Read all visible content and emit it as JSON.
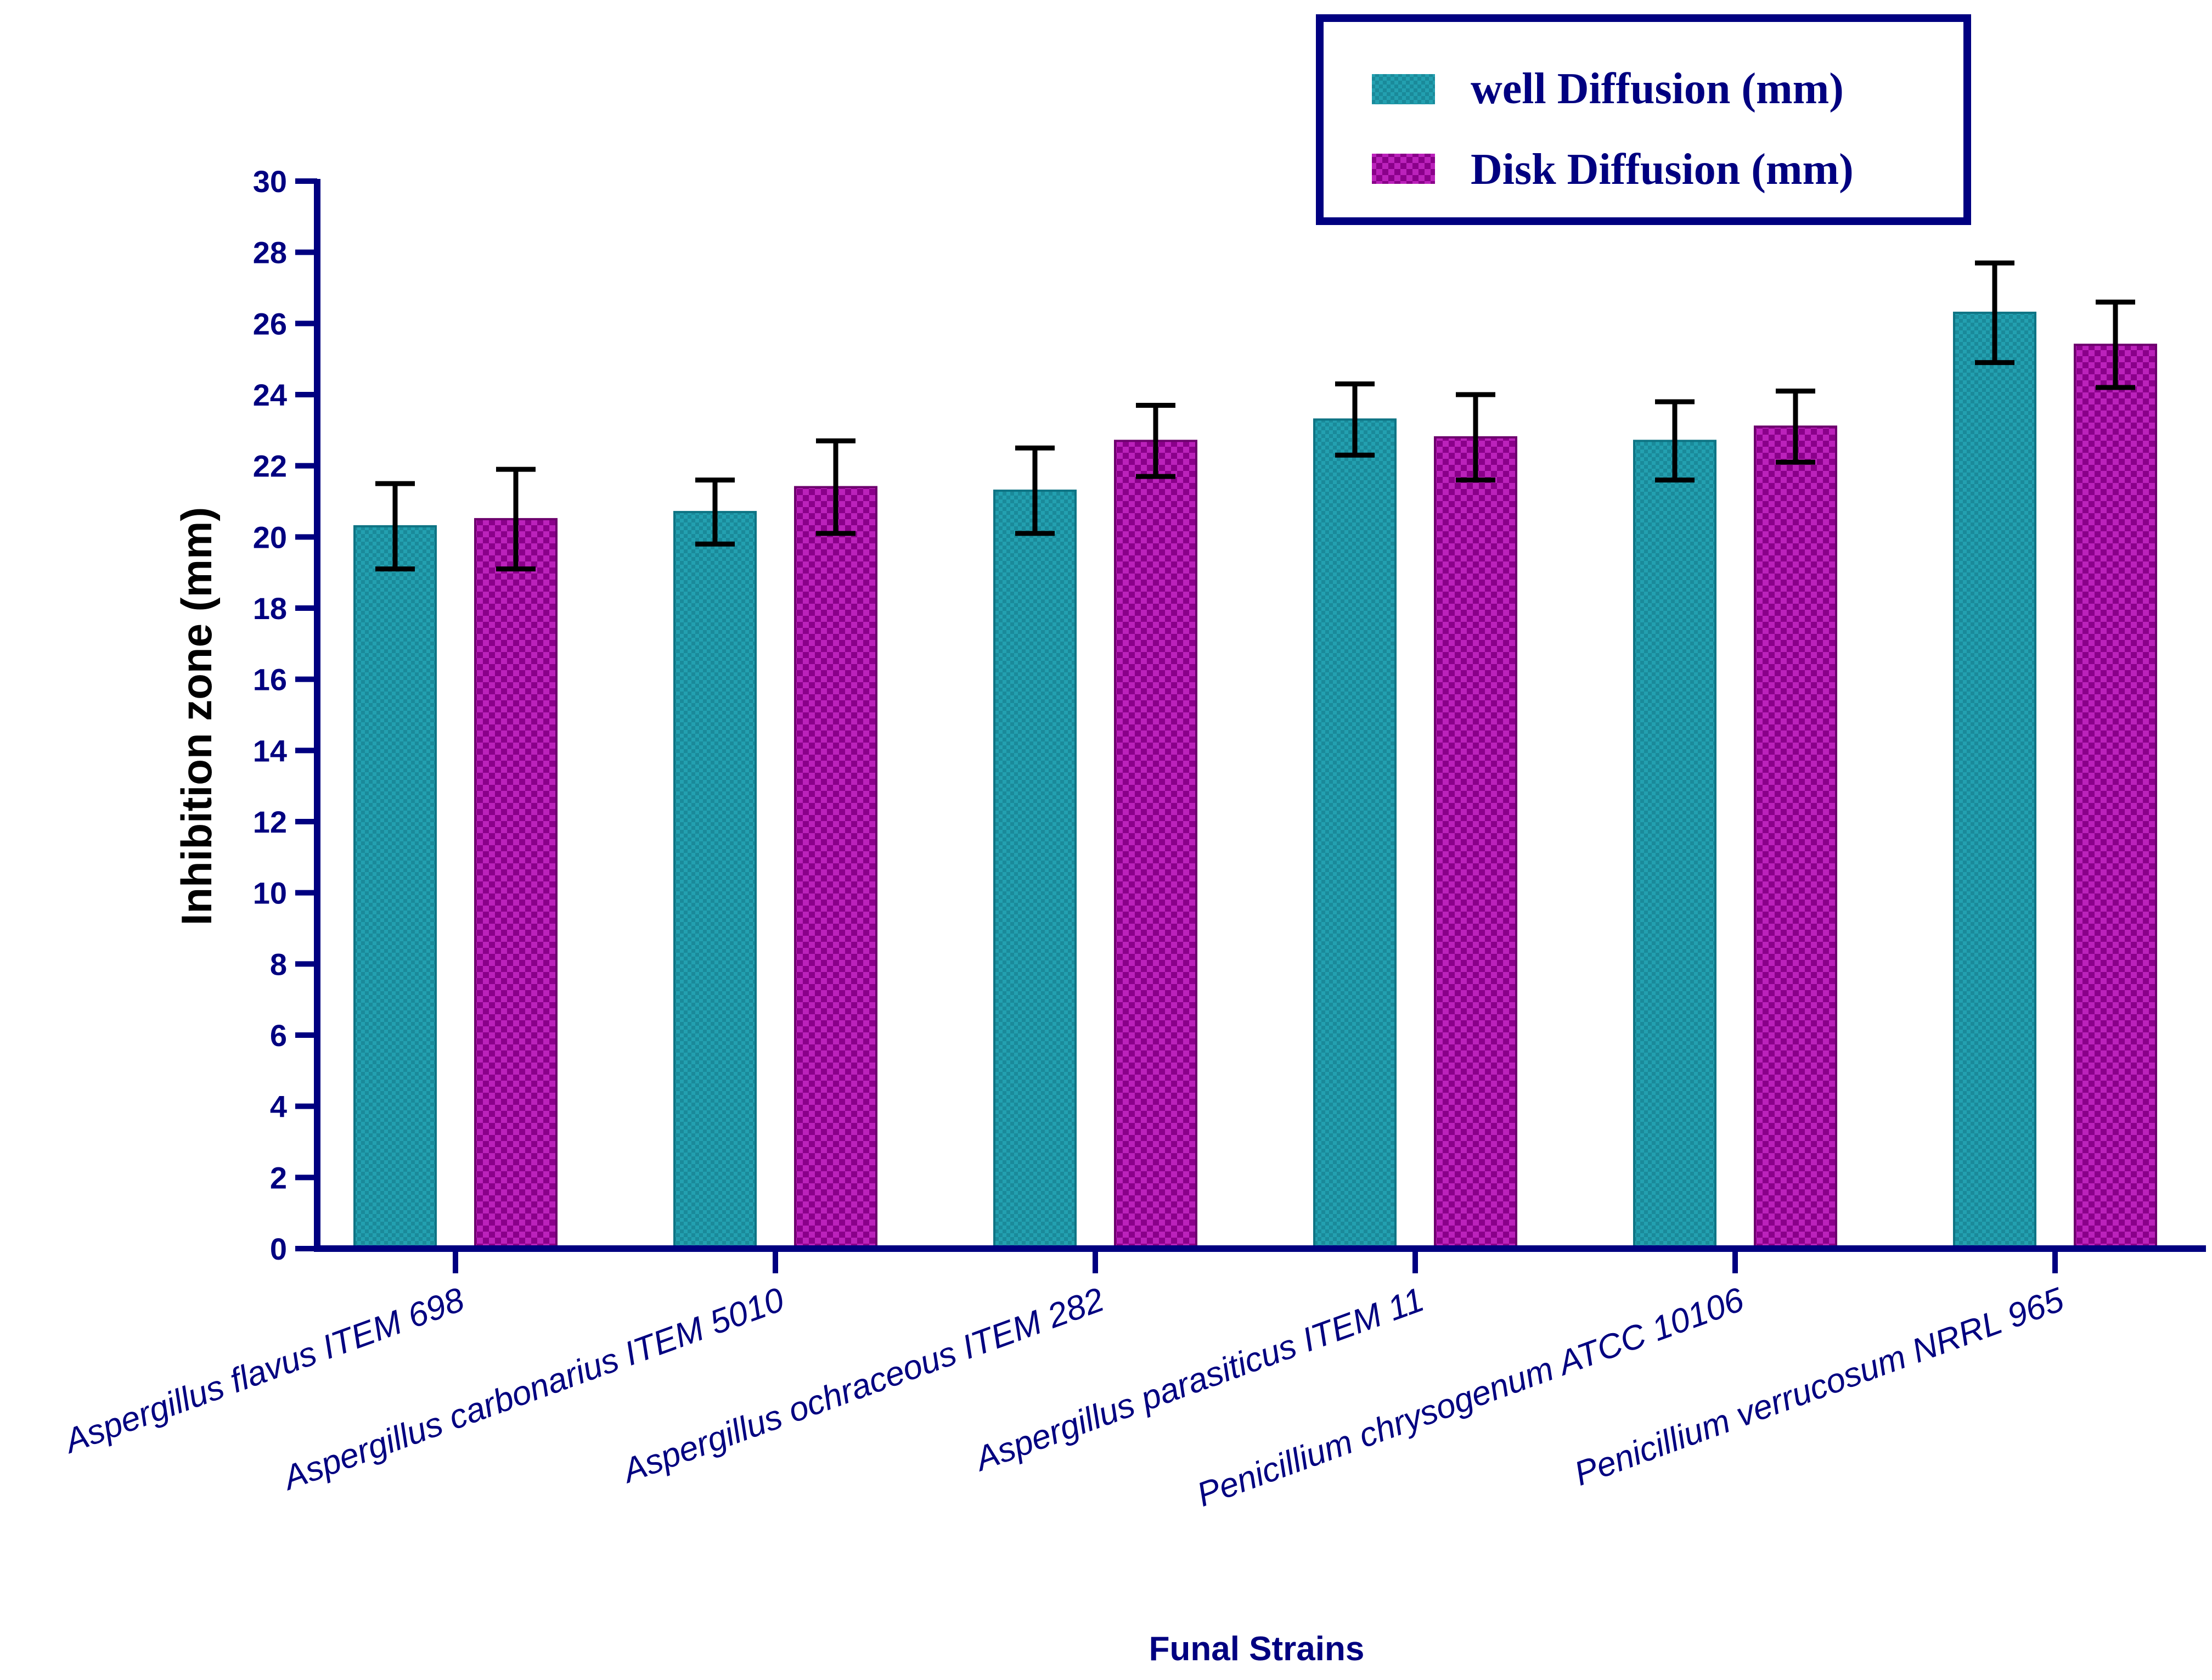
{
  "chart_data": {
    "type": "bar",
    "title": "",
    "xlabel": "Funal Strains",
    "ylabel": "Inhibition zone (mm)",
    "ylim": [
      0,
      30
    ],
    "yticks": [
      0,
      2,
      4,
      6,
      8,
      10,
      12,
      14,
      16,
      18,
      20,
      22,
      24,
      26,
      28,
      30
    ],
    "grid": false,
    "legend_position": "top-right",
    "categories": [
      "Aspergillus flavus ITEM 698",
      "Aspergillus carbonarius ITEM 5010",
      "Aspergillus ochraceous ITEM 282",
      "Aspergillus parasiticus ITEM 11",
      "Penicillium chrysogenum ATCC 10106",
      "Penicillium verrucosum NRRL 965"
    ],
    "series": [
      {
        "name": "well Diffusion (mm)",
        "color": "#1a8a9a",
        "values": [
          20.3,
          20.7,
          21.3,
          23.3,
          22.7,
          26.3
        ],
        "errors": [
          1.2,
          0.9,
          1.2,
          1.0,
          1.1,
          1.4
        ]
      },
      {
        "name": "Disk Diffusion (mm)",
        "color": "#990099",
        "values": [
          20.5,
          21.4,
          22.7,
          22.8,
          23.1,
          25.4
        ],
        "errors": [
          1.4,
          1.3,
          1.0,
          1.2,
          1.0,
          1.2
        ]
      }
    ]
  }
}
